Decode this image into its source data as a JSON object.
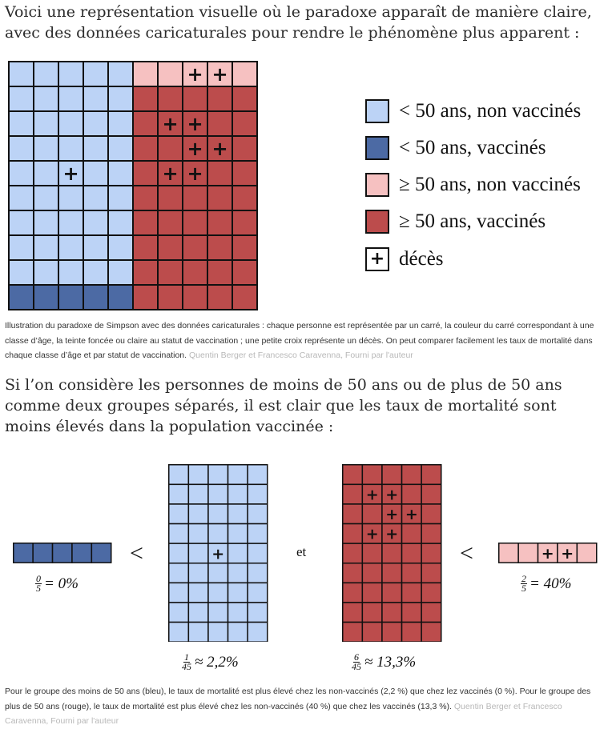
{
  "intro": "Voici une représentation visuelle où le paradoxe apparaît de manière claire, avec des données caricaturales pour rendre le phénomène plus apparent :",
  "colors": {
    "young_unvaccinated": "#bcd3f6",
    "young_vaccinated": "#4c6aa4",
    "old_unvaccinated": "#f6c1c1",
    "old_vaccinated": "#bc4c4c"
  },
  "legend": {
    "young_unvaccinated": "< 50 ans, non vaccinés",
    "young_vaccinated": "< 50 ans, vaccinés",
    "old_unvaccinated": "≥ 50 ans, non vaccinés",
    "old_vaccinated": "≥ 50 ans, vaccinés",
    "death": "décès",
    "death_symbol": "+"
  },
  "caption1": {
    "text": "Illustration du paradoxe de Simpson avec des données caricaturales : chaque personne est représentée par un carré, la couleur du carré correspondant à une classe d’âge, la teinte foncée ou claire au statut de vaccination ; une petite croix représente un décès. On peut comparer facilement les taux de mortalité dans chaque classe d’âge et par statut de vaccination.",
    "credit": "Quentin Berger et Francesco Caravenna, Fourni par l'auteur"
  },
  "paragraph2": "Si l’on considère les personnes de moins de 50 ans ou de plus de 50 ans comme deux groupes séparés, il est clair que les taux de mortalité sont moins élevés dans la population vaccinée :",
  "comparison": {
    "less_than": "<",
    "and": "et",
    "young_vaccinated": {
      "num": "0",
      "den": "5",
      "result": "= 0%"
    },
    "young_unvaccinated": {
      "num": "1",
      "den": "45",
      "result": "≈ 2,2%"
    },
    "old_vaccinated": {
      "num": "6",
      "den": "45",
      "result": "≈ 13,3%"
    },
    "old_unvaccinated": {
      "num": "2",
      "den": "5",
      "result": "= 40%"
    }
  },
  "caption2": {
    "text": "Pour le groupe des moins de 50 ans (bleu), le taux de mortalité est plus élevé chez les non-vaccinés (2,2 %) que chez lez vaccinés (0 %). Pour le groupe des plus de 50 ans (rouge), le taux de mortalité est plus élevé chez les non-vaccinés (40 %) que chez les vaccinés (13,3 %).",
    "credit": "Quentin Berger et Francesco Caravenna, Fourni par l'auteur"
  }
}
